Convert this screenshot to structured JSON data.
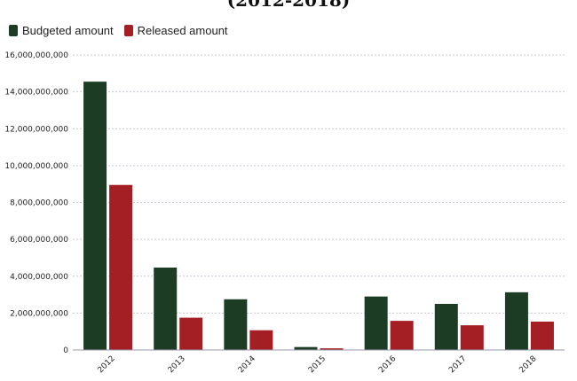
{
  "chart_data": {
    "type": "bar",
    "title": "(2012-2018)",
    "xlabel": "",
    "ylabel": "",
    "categories": [
      "2012",
      "2013",
      "2014",
      "2015",
      "2016",
      "2017",
      "2018"
    ],
    "series": [
      {
        "name": "Budgeted amount",
        "color": "#1c3d24",
        "values": [
          14550000000,
          4470000000,
          2750000000,
          160000000,
          2900000000,
          2500000000,
          3130000000
        ]
      },
      {
        "name": "Released amount",
        "color": "#a31f24",
        "values": [
          8950000000,
          1750000000,
          1070000000,
          90000000,
          1580000000,
          1340000000,
          1540000000
        ]
      }
    ],
    "ylim": [
      0,
      16000000000
    ],
    "yticks": [
      "0",
      "2,000,000,000",
      "4,000,000,000",
      "6,000,000,000",
      "8,000,000,000",
      "10,000,000,000",
      "12,000,000,000",
      "14,000,000,000",
      "16,000,000,000"
    ],
    "grid": true,
    "legend_position": "top-left"
  }
}
